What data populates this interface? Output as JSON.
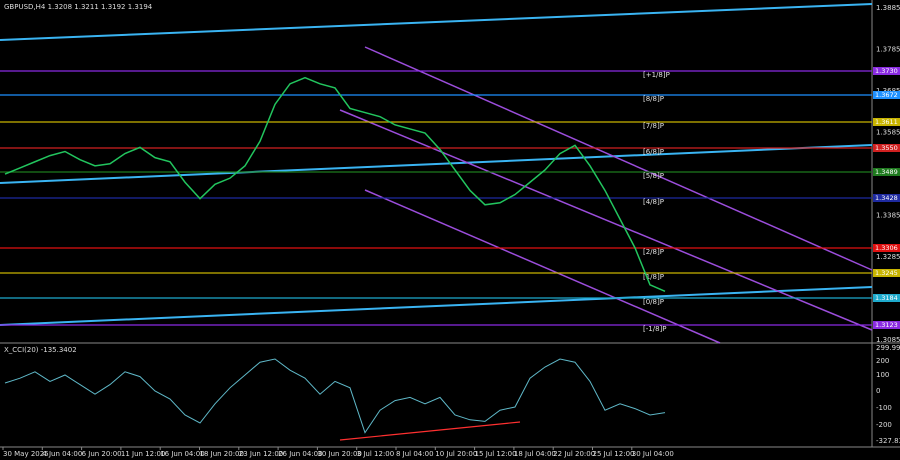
{
  "header": {
    "title": "GBPUSD,H4  1.3208 1.3211 1.3192 1.3194"
  },
  "price_axis": [
    "1.3885",
    "1.3785",
    "1.3685",
    "1.3585",
    "1.3485",
    "1.3385",
    "1.3285",
    "1.3185",
    "1.3085"
  ],
  "levels": [
    {
      "tag": "1.3730",
      "label": "[+1/8]P"
    },
    {
      "tag": "1.3672",
      "label": "[8/8]P"
    },
    {
      "tag": "1.3611",
      "label": "[7/8]P"
    },
    {
      "tag": "1.3550",
      "label": "[6/8]P"
    },
    {
      "tag": "1.3489",
      "label": "[5/8]P"
    },
    {
      "tag": "1.3428",
      "label": "[4/8]P"
    },
    {
      "tag": "1.3306",
      "label": "[2/8]P"
    },
    {
      "tag": "1.3245",
      "label": "[1/8]P"
    },
    {
      "tag": "1.3184",
      "label": "[0/8]P"
    },
    {
      "tag": "1.3123",
      "label": "[-1/8]P"
    }
  ],
  "time_labels": [
    "30 May 2025",
    "4 Jun 04:00",
    "6 Jun 20:00",
    "11 Jun 12:00",
    "16 Jun 04:00",
    "18 Jun 20:00",
    "23 Jun 12:00",
    "26 Jun 04:00",
    "30 Jun 20:00",
    "3 Jul 12:00",
    "8 Jul 04:00",
    "10 Jul 20:00",
    "15 Jul 12:00",
    "18 Jul 04:00",
    "22 Jul 20:00",
    "25 Jul 12:00",
    "30 Jul 04:00"
  ],
  "price": {
    "values": [
      1.348,
      1.3495,
      1.351,
      1.3525,
      1.3535,
      1.3515,
      1.35,
      1.3505,
      1.353,
      1.3545,
      1.352,
      1.351,
      1.346,
      1.342,
      1.3455,
      1.347,
      1.35,
      1.356,
      1.365,
      1.37,
      1.3715,
      1.37,
      1.369,
      1.364,
      1.363,
      1.362,
      1.36,
      1.359,
      1.358,
      1.354,
      1.349,
      1.344,
      1.3405,
      1.341,
      1.343,
      1.346,
      1.349,
      1.353,
      1.355,
      1.35,
      1.344,
      1.337,
      1.33,
      1.321,
      1.3194
    ]
  },
  "indicator": {
    "label": "X_CCI(20) -135.3402",
    "axis": [
      "299.9969",
      "200",
      "100",
      "0",
      "-100",
      "-200",
      "-327.832"
    ],
    "values": [
      50,
      80,
      120,
      60,
      100,
      40,
      -20,
      40,
      120,
      90,
      0,
      -50,
      -150,
      -200,
      -80,
      20,
      100,
      180,
      200,
      130,
      80,
      -20,
      60,
      20,
      -260,
      -120,
      -60,
      -40,
      -80,
      -40,
      -150,
      -180,
      -190,
      -120,
      -100,
      80,
      150,
      200,
      180,
      60,
      -120,
      -80,
      -110,
      -150,
      -135
    ]
  }
}
